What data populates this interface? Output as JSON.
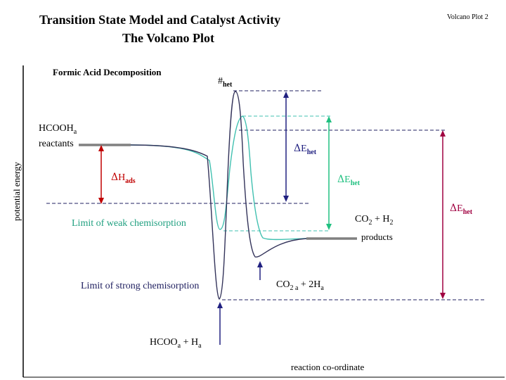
{
  "header": {
    "title_line1": "Transition State Model and Catalyst Activity",
    "title_line2": "The Volcano Plot",
    "slide_label": "Volcano Plot 2",
    "subtitle": "Formic Acid Decomposition"
  },
  "axes": {
    "ylabel": "potential energy",
    "xlabel": "reaction co-ordinate"
  },
  "labels": {
    "ts_hash": "#",
    "ts_sub": "het",
    "reactant_formula": "HCOOH",
    "reactant_sub": "a",
    "reactants": "reactants",
    "delta_h": "Δ",
    "h_main": "H",
    "h_sub": "ads",
    "delta_e": "Δ",
    "e_main": "E",
    "e_sub": "het",
    "weak_limit": "Limit of weak chemisorption",
    "strong_limit": "Limit of strong chemisorption",
    "products_formula_a": "CO",
    "products_formula_a_sub": "2",
    "products_formula_b": " + H",
    "products_formula_b_sub": "2",
    "products": "products",
    "co2a_main": "CO",
    "co2a_sub": "2 a",
    "co2a_plus": " + 2H",
    "co2a_plus_sub": "a",
    "hcooa_main": "HCOO",
    "hcooa_sub": "a",
    "hcooa_plus": " + H",
    "hcooa_plus_sub": "a"
  },
  "colors": {
    "dark_curve": "#33335a",
    "cyan_curve": "#40c0b0",
    "red_arrow": "#c00000",
    "navy_arrow": "#202080",
    "green_arrow": "#20c080",
    "maroon_arrow": "#a00040",
    "level_gray": "#808080",
    "dashed": "#202060"
  }
}
